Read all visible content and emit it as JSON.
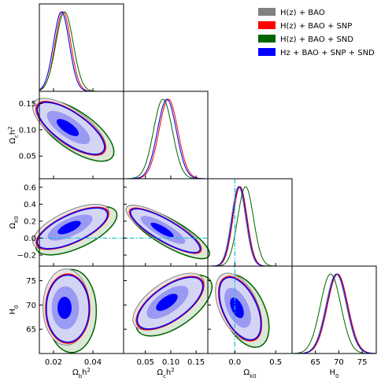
{
  "chart_data": {
    "type": "corner",
    "parameters": [
      {
        "label": {
          "base": "Ω",
          "sub": "b",
          "rest": "h",
          "sup": "2"
        },
        "lim": [
          0.0128,
          0.0556
        ],
        "xticks": [
          0.02,
          0.04
        ]
      },
      {
        "label": {
          "base": "Ω",
          "sub": "c",
          "rest": "h",
          "sup": "2"
        },
        "lim": [
          0.007,
          0.173
        ],
        "xticks": [
          {
            "value": 0.05,
            "label": "0.05"
          },
          {
            "value": 0.1,
            "label": "0.10"
          },
          {
            "value": 0.15,
            "label": "0.15"
          }
        ],
        "yticks": [
          {
            "value": 0.05,
            "label": "0.05"
          },
          {
            "value": 0.1,
            "label": "0.10"
          },
          {
            "value": 0.15,
            "label": "0.15"
          }
        ]
      },
      {
        "label": {
          "base": "Ω",
          "sub": "k0"
        },
        "lim": [
          -0.33,
          0.7
        ],
        "xticks": [
          {
            "value": 0,
            "label": "0.0"
          },
          0.5
        ],
        "yticks": [
          {
            "value": -0.2,
            "label": "−0.2"
          },
          {
            "value": 0,
            "label": "0.0"
          },
          0.2,
          0.4,
          0.6
        ]
      },
      {
        "label": {
          "base": "H",
          "sub": "0"
        },
        "lim": [
          60,
          78
        ],
        "xticks": [
          65,
          70,
          75
        ],
        "yticks": [
          65,
          70,
          75
        ]
      }
    ],
    "series": [
      {
        "name": "H(z) + BAO",
        "color": "#808080"
      },
      {
        "name": "H(z) + BAO + SNP",
        "color": "#ff0000"
      },
      {
        "name": "H(z) + BAO + SND",
        "color": "#006400"
      },
      {
        "name": "Hz + BAO + SNP + SND",
        "color": "#0000ff"
      }
    ],
    "legend_loc": "upper right",
    "reference_lines": [
      {
        "parameter": 2,
        "value": 0,
        "color": "#17becf"
      }
    ]
  }
}
